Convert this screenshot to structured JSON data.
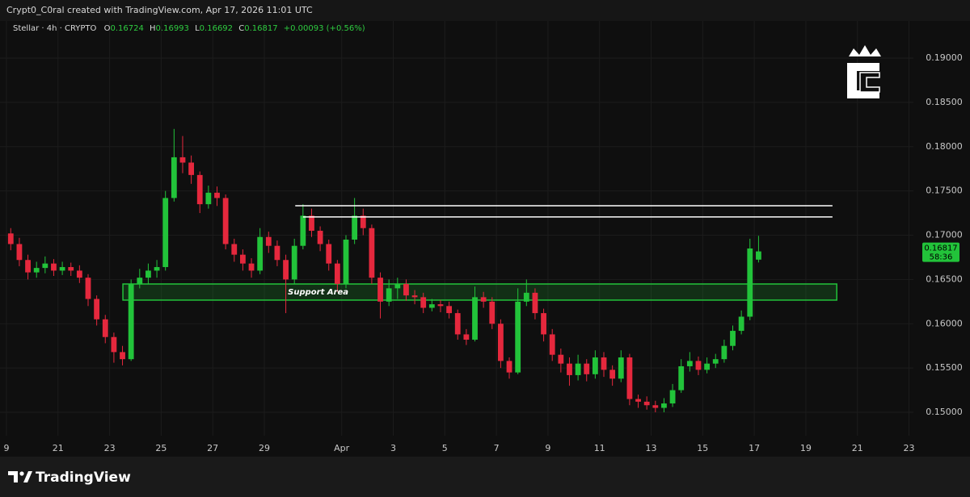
{
  "header": {
    "credit": "Crypt0_C0ral created with TradingView.com, Apr 17, 2026 11:01 UTC",
    "symbol": "Stellar · 4h · CRYPTO",
    "ohlc_keys": [
      "O",
      "H",
      "L",
      "C"
    ],
    "change": "+0.00093 (+0.56%)"
  },
  "footer": {
    "brand": "TradingView"
  },
  "chart_data": {
    "type": "candlestick",
    "open": [
      0.1702,
      0.169,
      0.1672,
      0.1658,
      0.1663,
      0.1668,
      0.166,
      0.1664,
      0.166,
      0.1652,
      0.1628,
      0.1605,
      0.1585,
      0.1568,
      0.156,
      0.1645,
      0.1652,
      0.166,
      0.1664,
      0.1742,
      0.1788,
      0.1782,
      0.1768,
      0.1735,
      0.1748,
      0.1742,
      0.169,
      0.1678,
      0.1668,
      0.166,
      0.1698,
      0.1688,
      0.1672,
      0.165,
      0.1688,
      0.1722,
      0.1705,
      0.169,
      0.1668,
      0.1645,
      0.1695,
      0.1722,
      0.1708,
      0.1652,
      0.1625,
      0.164,
      0.1645,
      0.1632,
      0.163,
      0.1618,
      0.1622,
      0.162,
      0.1612,
      0.1588,
      0.1582,
      0.163,
      0.1625,
      0.16,
      0.1558,
      0.1545,
      0.1625,
      0.1635,
      0.1612,
      0.1588,
      0.1565,
      0.1555,
      0.1542,
      0.1555,
      0.1543,
      0.1562,
      0.1548,
      0.1538,
      0.1562,
      0.1515,
      0.1512,
      0.1508,
      0.1505,
      0.151,
      0.1525,
      0.1552,
      0.1558,
      0.1548,
      0.1555,
      0.156,
      0.1575,
      0.1592,
      0.1608,
      0.16724
    ],
    "high": [
      0.1708,
      0.1697,
      0.1678,
      0.167,
      0.1676,
      0.1673,
      0.167,
      0.1669,
      0.1666,
      0.1656,
      0.1632,
      0.161,
      0.159,
      0.1575,
      0.165,
      0.1662,
      0.1668,
      0.1672,
      0.175,
      0.182,
      0.1812,
      0.179,
      0.1772,
      0.1756,
      0.1755,
      0.1746,
      0.1696,
      0.1684,
      0.1674,
      0.1708,
      0.1704,
      0.1694,
      0.1678,
      0.1696,
      0.1735,
      0.173,
      0.171,
      0.1695,
      0.1672,
      0.17,
      0.1742,
      0.173,
      0.1712,
      0.1658,
      0.165,
      0.1652,
      0.165,
      0.1638,
      0.1635,
      0.1628,
      0.1627,
      0.1625,
      0.1616,
      0.1594,
      0.1642,
      0.1636,
      0.163,
      0.1605,
      0.1562,
      0.164,
      0.165,
      0.164,
      0.1617,
      0.1594,
      0.1572,
      0.1562,
      0.1565,
      0.156,
      0.157,
      0.1568,
      0.1553,
      0.157,
      0.1566,
      0.152,
      0.1518,
      0.1513,
      0.1516,
      0.1532,
      0.156,
      0.1568,
      0.1563,
      0.1562,
      0.1566,
      0.1582,
      0.1598,
      0.1615,
      0.1696,
      0.16993
    ],
    "low": [
      0.1683,
      0.1665,
      0.165,
      0.1652,
      0.1657,
      0.1654,
      0.1655,
      0.1654,
      0.1646,
      0.162,
      0.1598,
      0.1578,
      0.1556,
      0.1553,
      0.1558,
      0.164,
      0.1645,
      0.1652,
      0.166,
      0.1738,
      0.177,
      0.1758,
      0.1725,
      0.173,
      0.1733,
      0.1684,
      0.167,
      0.166,
      0.1652,
      0.1656,
      0.168,
      0.1665,
      0.1612,
      0.1645,
      0.1684,
      0.1698,
      0.1682,
      0.166,
      0.1636,
      0.164,
      0.169,
      0.17,
      0.1645,
      0.1606,
      0.162,
      0.1628,
      0.1626,
      0.1622,
      0.1612,
      0.1614,
      0.1613,
      0.1606,
      0.1582,
      0.1576,
      0.158,
      0.1618,
      0.1594,
      0.155,
      0.1538,
      0.1543,
      0.162,
      0.1605,
      0.158,
      0.1558,
      0.1545,
      0.153,
      0.1536,
      0.1535,
      0.1538,
      0.154,
      0.153,
      0.1534,
      0.1508,
      0.1505,
      0.1503,
      0.15,
      0.15,
      0.1506,
      0.1522,
      0.1546,
      0.1542,
      0.1544,
      0.155,
      0.1556,
      0.157,
      0.1588,
      0.1604,
      0.16692
    ],
    "close": [
      0.169,
      0.1672,
      0.1658,
      0.1663,
      0.1668,
      0.166,
      0.1664,
      0.166,
      0.1652,
      0.1628,
      0.1605,
      0.1585,
      0.1568,
      0.156,
      0.1645,
      0.1652,
      0.166,
      0.1664,
      0.1742,
      0.1788,
      0.1782,
      0.1768,
      0.1735,
      0.1748,
      0.1742,
      0.169,
      0.1678,
      0.1668,
      0.166,
      0.1698,
      0.1688,
      0.1672,
      0.165,
      0.1688,
      0.1722,
      0.1705,
      0.169,
      0.1668,
      0.1645,
      0.1695,
      0.1722,
      0.1708,
      0.1652,
      0.1625,
      0.164,
      0.1645,
      0.1632,
      0.163,
      0.1618,
      0.1622,
      0.162,
      0.1612,
      0.1588,
      0.1582,
      0.163,
      0.1625,
      0.16,
      0.1558,
      0.1545,
      0.1625,
      0.1635,
      0.1612,
      0.1588,
      0.1565,
      0.1555,
      0.1542,
      0.1555,
      0.1543,
      0.1562,
      0.1548,
      0.1538,
      0.1562,
      0.1515,
      0.1512,
      0.1508,
      0.1505,
      0.151,
      0.1525,
      0.1552,
      0.1558,
      0.1548,
      0.1555,
      0.156,
      0.1575,
      0.1592,
      0.1608,
      0.1685,
      0.16817
    ],
    "up_color": "#22c33a",
    "down_color": "#e5283d",
    "countdown": "58:36",
    "xlim": [
      -1.25,
      111.6
    ],
    "xticks": [
      {
        "value": -0.5,
        "label": "9"
      },
      {
        "value": 5.5,
        "label": "21"
      },
      {
        "value": 11.5,
        "label": "23"
      },
      {
        "value": 17.5,
        "label": "25"
      },
      {
        "value": 23.5,
        "label": "27"
      },
      {
        "value": 29.5,
        "label": "29"
      },
      {
        "value": 38.5,
        "label": "Apr"
      },
      {
        "value": 44.5,
        "label": "3"
      },
      {
        "value": 50.5,
        "label": "5"
      },
      {
        "value": 56.5,
        "label": "7"
      },
      {
        "value": 62.5,
        "label": "9"
      },
      {
        "value": 68.5,
        "label": "11"
      },
      {
        "value": 74.5,
        "label": "13"
      },
      {
        "value": 80.5,
        "label": "15"
      },
      {
        "value": 86.5,
        "label": "17"
      },
      {
        "value": 92.5,
        "label": "19"
      },
      {
        "value": 98.5,
        "label": "21"
      },
      {
        "value": 104.5,
        "label": "23"
      }
    ],
    "ylim": [
      0.14736,
      0.19246
    ],
    "yticks": [
      {
        "value": 0.15,
        "label": "0.15000"
      },
      {
        "value": 0.155,
        "label": "0.15500"
      },
      {
        "value": 0.16,
        "label": "0.16000"
      },
      {
        "value": 0.165,
        "label": "0.16500"
      },
      {
        "value": 0.17,
        "label": "0.17000"
      },
      {
        "value": 0.175,
        "label": "0.17500"
      },
      {
        "value": 0.18,
        "label": "0.18000"
      },
      {
        "value": 0.185,
        "label": "0.18500"
      },
      {
        "value": 0.19,
        "label": "0.19000"
      }
    ],
    "grid": true,
    "resistance_lines": [
      {
        "value": 0.17333,
        "x": [
          33.1,
          95.6
        ]
      },
      {
        "value": 0.17206,
        "x": [
          34.0,
          95.6
        ]
      }
    ],
    "support_area": {
      "label": "Support Area",
      "range": [
        0.16267,
        0.16449
      ],
      "x": [
        13.05,
        96.1
      ],
      "color": "#22c33a"
    }
  }
}
